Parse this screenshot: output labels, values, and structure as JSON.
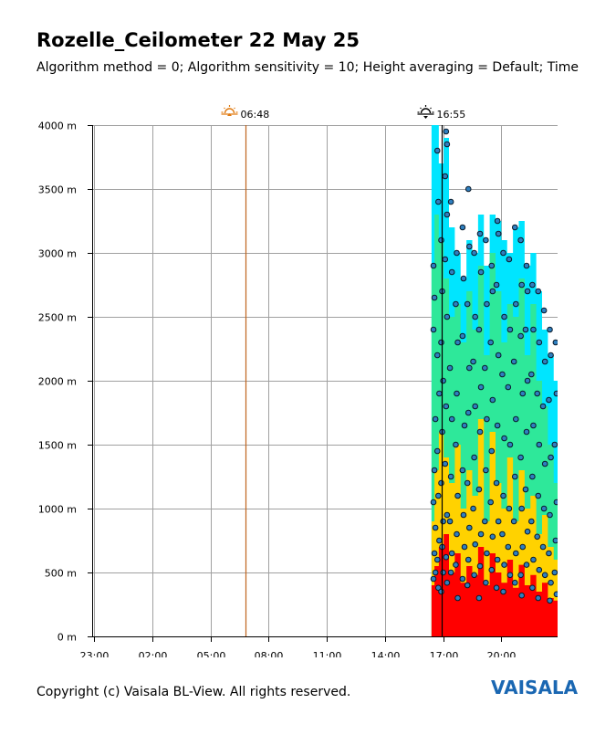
{
  "title": "Rozelle_Ceilometer 22 May 25",
  "subtitle": "Algorithm method = 0; Algorithm sensitivity = 10; Height averaging = Default; Time",
  "footer": "Copyright (c) Vaisala BL-View. All rights reserved.",
  "brand": "VAISALA",
  "colors": {
    "grid": "#a0a0a0",
    "sunrise_line": "#c0641e",
    "sunset_line": "#000000",
    "cloud_dot_fill": "#2f7fbf",
    "backscatter_high": "#ff0000",
    "backscatter_mid": "#ffd200",
    "backscatter_low": "#2ee89a",
    "backscatter_faint": "#00e5ff"
  },
  "markers": [
    {
      "label": "06:48",
      "icon": "sunrise-icon",
      "hour": 6.8
    },
    {
      "label": "16:55",
      "icon": "sunset-icon",
      "hour": 16.9167
    }
  ],
  "chart_data": {
    "type": "heatmap",
    "title": "Rozelle_Ceilometer 22 May 25",
    "x_ticks": [
      {
        "label": "23:00",
        "hour": -1
      },
      {
        "label": "02:00",
        "hour": 2
      },
      {
        "label": "05:00",
        "hour": 5
      },
      {
        "label": "08:00",
        "hour": 8
      },
      {
        "label": "11:00",
        "hour": 11
      },
      {
        "label": "14:00",
        "hour": 14
      },
      {
        "label": "17:00",
        "hour": 17
      },
      {
        "label": "20:00",
        "hour": 20
      }
    ],
    "y_ticks": [
      {
        "label": "0 m",
        "value": 0
      },
      {
        "label": "500 m",
        "value": 500
      },
      {
        "label": "1000 m",
        "value": 1000
      },
      {
        "label": "1500 m",
        "value": 1500
      },
      {
        "label": "2000 m",
        "value": 2000
      },
      {
        "label": "2500 m",
        "value": 2500
      },
      {
        "label": "3000 m",
        "value": 3000
      },
      {
        "label": "3500 m",
        "value": 3500
      },
      {
        "label": "4000 m",
        "value": 4000
      }
    ],
    "xlim_hours": [
      -1.1,
      22.9
    ],
    "ylim": [
      0,
      4000
    ],
    "grid": true,
    "data_start_hour": 16.4,
    "data_end_hour": 22.9,
    "backscatter_columns": [
      {
        "t": 16.45,
        "red": 400,
        "yellow": 900,
        "green": 2900,
        "cyan": 4000
      },
      {
        "t": 16.65,
        "red": 550,
        "yellow": 1300,
        "green": 3300,
        "cyan": 4000
      },
      {
        "t": 16.9,
        "red": 700,
        "yellow": 1600,
        "green": 3100,
        "cyan": 3700
      },
      {
        "t": 17.15,
        "red": 800,
        "yellow": 1400,
        "green": 2800,
        "cyan": 3900
      },
      {
        "t": 17.45,
        "red": 500,
        "yellow": 1200,
        "green": 2500,
        "cyan": 3200
      },
      {
        "t": 17.75,
        "red": 650,
        "yellow": 1500,
        "green": 2600,
        "cyan": 3000
      },
      {
        "t": 18.05,
        "red": 420,
        "yellow": 1000,
        "green": 2300,
        "cyan": 2800
      },
      {
        "t": 18.35,
        "red": 550,
        "yellow": 1300,
        "green": 2700,
        "cyan": 3100
      },
      {
        "t": 18.65,
        "red": 480,
        "yellow": 1100,
        "green": 2400,
        "cyan": 3000
      },
      {
        "t": 18.95,
        "red": 700,
        "yellow": 1700,
        "green": 2900,
        "cyan": 3300
      },
      {
        "t": 19.25,
        "red": 400,
        "yellow": 900,
        "green": 2200,
        "cyan": 2900
      },
      {
        "t": 19.55,
        "red": 650,
        "yellow": 1600,
        "green": 3000,
        "cyan": 3300
      },
      {
        "t": 19.85,
        "red": 500,
        "yellow": 1200,
        "green": 2700,
        "cyan": 3250
      },
      {
        "t": 20.15,
        "red": 420,
        "yellow": 1000,
        "green": 2300,
        "cyan": 3100
      },
      {
        "t": 20.45,
        "red": 600,
        "yellow": 1400,
        "green": 2600,
        "cyan": 3000
      },
      {
        "t": 20.75,
        "red": 380,
        "yellow": 900,
        "green": 2500,
        "cyan": 3200
      },
      {
        "t": 21.05,
        "red": 560,
        "yellow": 1300,
        "green": 2800,
        "cyan": 3250
      },
      {
        "t": 21.35,
        "red": 400,
        "yellow": 1000,
        "green": 2200,
        "cyan": 2900
      },
      {
        "t": 21.65,
        "red": 480,
        "yellow": 1100,
        "green": 2600,
        "cyan": 3000
      },
      {
        "t": 21.95,
        "red": 350,
        "yellow": 800,
        "green": 2000,
        "cyan": 2700
      },
      {
        "t": 22.25,
        "red": 420,
        "yellow": 950,
        "green": 1800,
        "cyan": 2400
      },
      {
        "t": 22.55,
        "red": 300,
        "yellow": 700,
        "green": 1500,
        "cyan": 2200
      },
      {
        "t": 22.85,
        "red": 280,
        "yellow": 600,
        "green": 1200,
        "cyan": 2000
      }
    ],
    "cloud_base_points": [
      [
        16.5,
        2900
      ],
      [
        16.55,
        2650
      ],
      [
        16.5,
        2400
      ],
      [
        16.6,
        1700
      ],
      [
        16.55,
        1300
      ],
      [
        16.5,
        1050
      ],
      [
        16.6,
        850
      ],
      [
        16.55,
        650
      ],
      [
        16.6,
        500
      ],
      [
        16.5,
        450
      ],
      [
        16.7,
        3800
      ],
      [
        16.75,
        3400
      ],
      [
        16.7,
        2200
      ],
      [
        16.8,
        1900
      ],
      [
        16.7,
        1450
      ],
      [
        16.75,
        1100
      ],
      [
        16.8,
        750
      ],
      [
        16.7,
        600
      ],
      [
        16.75,
        380
      ],
      [
        16.9,
        3100
      ],
      [
        16.95,
        2700
      ],
      [
        16.9,
        2300
      ],
      [
        17.0,
        2000
      ],
      [
        16.95,
        1600
      ],
      [
        16.9,
        1200
      ],
      [
        17.0,
        900
      ],
      [
        16.95,
        700
      ],
      [
        17.0,
        500
      ],
      [
        16.9,
        350
      ],
      [
        17.15,
        3950
      ],
      [
        17.2,
        3850
      ],
      [
        17.1,
        3600
      ],
      [
        17.2,
        3300
      ],
      [
        17.1,
        2950
      ],
      [
        17.2,
        2500
      ],
      [
        17.15,
        1800
      ],
      [
        17.1,
        1350
      ],
      [
        17.2,
        950
      ],
      [
        17.15,
        620
      ],
      [
        17.2,
        420
      ],
      [
        17.4,
        3400
      ],
      [
        17.45,
        2850
      ],
      [
        17.35,
        2100
      ],
      [
        17.45,
        1700
      ],
      [
        17.4,
        1250
      ],
      [
        17.35,
        900
      ],
      [
        17.45,
        650
      ],
      [
        17.4,
        500
      ],
      [
        17.7,
        3000
      ],
      [
        17.65,
        2600
      ],
      [
        17.75,
        2300
      ],
      [
        17.7,
        1900
      ],
      [
        17.65,
        1500
      ],
      [
        17.75,
        1100
      ],
      [
        17.7,
        800
      ],
      [
        17.65,
        560
      ],
      [
        17.75,
        300
      ],
      [
        18.0,
        3200
      ],
      [
        18.05,
        2800
      ],
      [
        18.0,
        2350
      ],
      [
        18.1,
        1650
      ],
      [
        18.0,
        1300
      ],
      [
        18.05,
        950
      ],
      [
        18.1,
        700
      ],
      [
        18.0,
        450
      ],
      [
        18.3,
        3500
      ],
      [
        18.35,
        3050
      ],
      [
        18.25,
        2600
      ],
      [
        18.35,
        2100
      ],
      [
        18.3,
        1750
      ],
      [
        18.25,
        1200
      ],
      [
        18.35,
        850
      ],
      [
        18.3,
        600
      ],
      [
        18.25,
        400
      ],
      [
        18.6,
        3000
      ],
      [
        18.65,
        2500
      ],
      [
        18.55,
        2150
      ],
      [
        18.65,
        1800
      ],
      [
        18.6,
        1400
      ],
      [
        18.55,
        1000
      ],
      [
        18.65,
        720
      ],
      [
        18.6,
        480
      ],
      [
        18.9,
        3150
      ],
      [
        18.95,
        2850
      ],
      [
        18.85,
        2400
      ],
      [
        18.95,
        1950
      ],
      [
        18.9,
        1600
      ],
      [
        18.85,
        1150
      ],
      [
        18.95,
        800
      ],
      [
        18.9,
        550
      ],
      [
        18.85,
        300
      ],
      [
        19.2,
        3100
      ],
      [
        19.25,
        2600
      ],
      [
        19.15,
        2100
      ],
      [
        19.25,
        1700
      ],
      [
        19.2,
        1300
      ],
      [
        19.15,
        900
      ],
      [
        19.25,
        650
      ],
      [
        19.2,
        420
      ],
      [
        19.5,
        2900
      ],
      [
        19.55,
        2700
      ],
      [
        19.45,
        2300
      ],
      [
        19.55,
        1850
      ],
      [
        19.5,
        1450
      ],
      [
        19.45,
        1050
      ],
      [
        19.55,
        780
      ],
      [
        19.5,
        520
      ],
      [
        19.8,
        3250
      ],
      [
        19.85,
        3150
      ],
      [
        19.75,
        2750
      ],
      [
        19.85,
        2200
      ],
      [
        19.8,
        1650
      ],
      [
        19.75,
        1200
      ],
      [
        19.85,
        900
      ],
      [
        19.8,
        600
      ],
      [
        19.75,
        380
      ],
      [
        20.1,
        3000
      ],
      [
        20.15,
        2500
      ],
      [
        20.05,
        2050
      ],
      [
        20.15,
        1550
      ],
      [
        20.1,
        1100
      ],
      [
        20.05,
        800
      ],
      [
        20.15,
        560
      ],
      [
        20.1,
        350
      ],
      [
        20.4,
        2950
      ],
      [
        20.45,
        2400
      ],
      [
        20.35,
        1950
      ],
      [
        20.45,
        1500
      ],
      [
        20.4,
        1000
      ],
      [
        20.35,
        700
      ],
      [
        20.45,
        480
      ],
      [
        20.7,
        3200
      ],
      [
        20.75,
        2600
      ],
      [
        20.65,
        2150
      ],
      [
        20.75,
        1700
      ],
      [
        20.7,
        1250
      ],
      [
        20.65,
        900
      ],
      [
        20.75,
        650
      ],
      [
        20.7,
        420
      ],
      [
        21.0,
        3100
      ],
      [
        21.05,
        2750
      ],
      [
        21.0,
        2350
      ],
      [
        21.1,
        1900
      ],
      [
        21.0,
        1400
      ],
      [
        21.05,
        1000
      ],
      [
        21.1,
        700
      ],
      [
        21.0,
        480
      ],
      [
        21.05,
        320
      ],
      [
        21.3,
        2900
      ],
      [
        21.35,
        2700
      ],
      [
        21.25,
        2400
      ],
      [
        21.35,
        2000
      ],
      [
        21.3,
        1600
      ],
      [
        21.25,
        1150
      ],
      [
        21.35,
        820
      ],
      [
        21.3,
        560
      ],
      [
        21.6,
        2750
      ],
      [
        21.65,
        2400
      ],
      [
        21.55,
        2050
      ],
      [
        21.65,
        1650
      ],
      [
        21.6,
        1250
      ],
      [
        21.55,
        900
      ],
      [
        21.65,
        600
      ],
      [
        21.6,
        380
      ],
      [
        21.9,
        2700
      ],
      [
        21.95,
        2300
      ],
      [
        21.85,
        1900
      ],
      [
        21.95,
        1500
      ],
      [
        21.9,
        1100
      ],
      [
        21.85,
        780
      ],
      [
        21.95,
        520
      ],
      [
        21.9,
        300
      ],
      [
        22.2,
        2550
      ],
      [
        22.25,
        2150
      ],
      [
        22.15,
        1800
      ],
      [
        22.25,
        1350
      ],
      [
        22.2,
        1000
      ],
      [
        22.15,
        700
      ],
      [
        22.25,
        480
      ],
      [
        22.5,
        2400
      ],
      [
        22.55,
        2200
      ],
      [
        22.45,
        1850
      ],
      [
        22.55,
        1400
      ],
      [
        22.5,
        950
      ],
      [
        22.45,
        650
      ],
      [
        22.55,
        420
      ],
      [
        22.5,
        280
      ],
      [
        22.8,
        2300
      ],
      [
        22.85,
        1900
      ],
      [
        22.75,
        1500
      ],
      [
        22.85,
        1050
      ],
      [
        22.8,
        750
      ],
      [
        22.75,
        500
      ],
      [
        22.85,
        330
      ]
    ]
  }
}
